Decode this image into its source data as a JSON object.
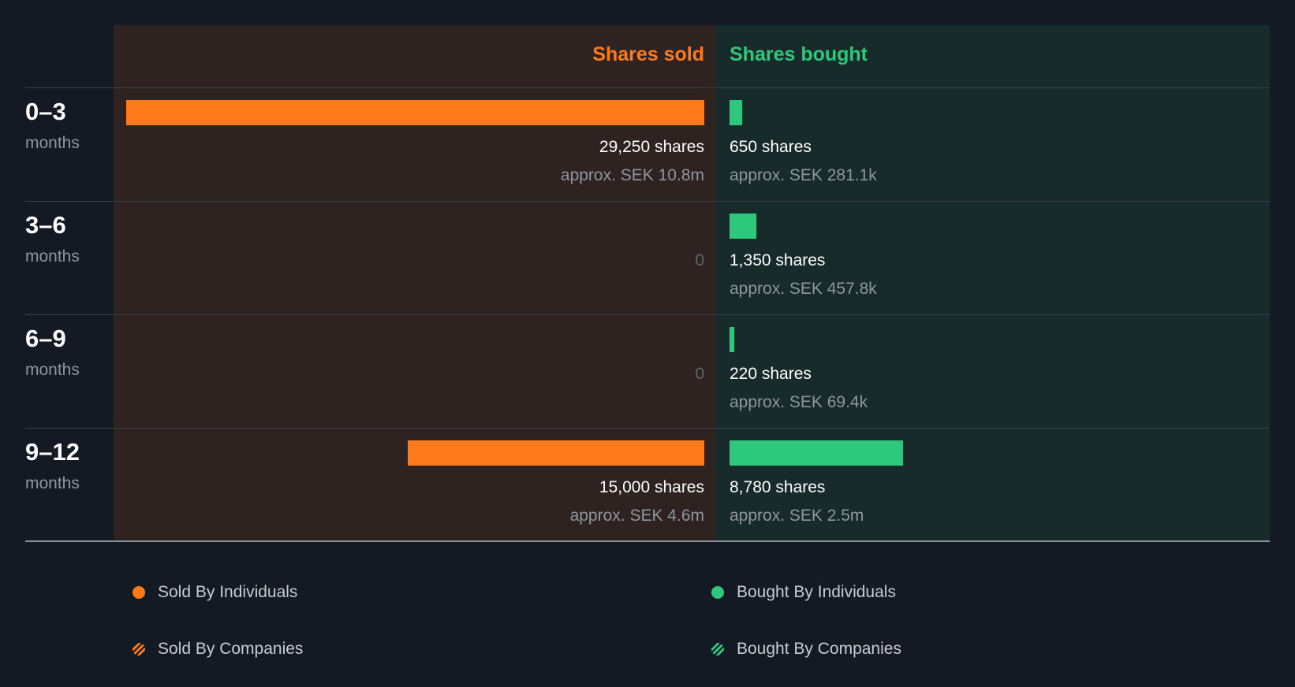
{
  "chart_data": {
    "type": "bar",
    "headers": {
      "sold": "Shares sold",
      "bought": "Shares bought"
    },
    "categories": [
      {
        "num": "0–3",
        "unit": "months"
      },
      {
        "num": "3–6",
        "unit": "months"
      },
      {
        "num": "6–9",
        "unit": "months"
      },
      {
        "num": "9–12",
        "unit": "months"
      }
    ],
    "series": [
      {
        "name": "Shares sold",
        "values": [
          29250,
          0,
          0,
          15000
        ],
        "share_labels": [
          "29,250 shares",
          "0",
          "0",
          "15,000 shares"
        ],
        "value_labels": [
          "approx. SEK 10.8m",
          "",
          "",
          "approx. SEK 4.6m"
        ]
      },
      {
        "name": "Shares bought",
        "values": [
          650,
          1350,
          220,
          8780
        ],
        "share_labels": [
          "650 shares",
          "1,350 shares",
          "220 shares",
          "8,780 shares"
        ],
        "value_labels": [
          "approx. SEK 281.1k",
          "approx. SEK 457.8k",
          "approx. SEK 69.4k",
          "approx. SEK 2.5m"
        ]
      }
    ],
    "legend": [
      {
        "label": "Sold By Individuals",
        "marker": "dot",
        "color": "#ff7a1a"
      },
      {
        "label": "Bought By Individuals",
        "marker": "dot",
        "color": "#2ec87d"
      },
      {
        "label": "Sold By Companies",
        "marker": "striped-dot",
        "color": "#ff7a1a"
      },
      {
        "label": "Bought By Companies",
        "marker": "striped-dot",
        "color": "#2ec87d"
      }
    ],
    "colors": {
      "sold": "#ff7a1a",
      "bought": "#2ec87d"
    },
    "legend_placement": "bottom"
  }
}
